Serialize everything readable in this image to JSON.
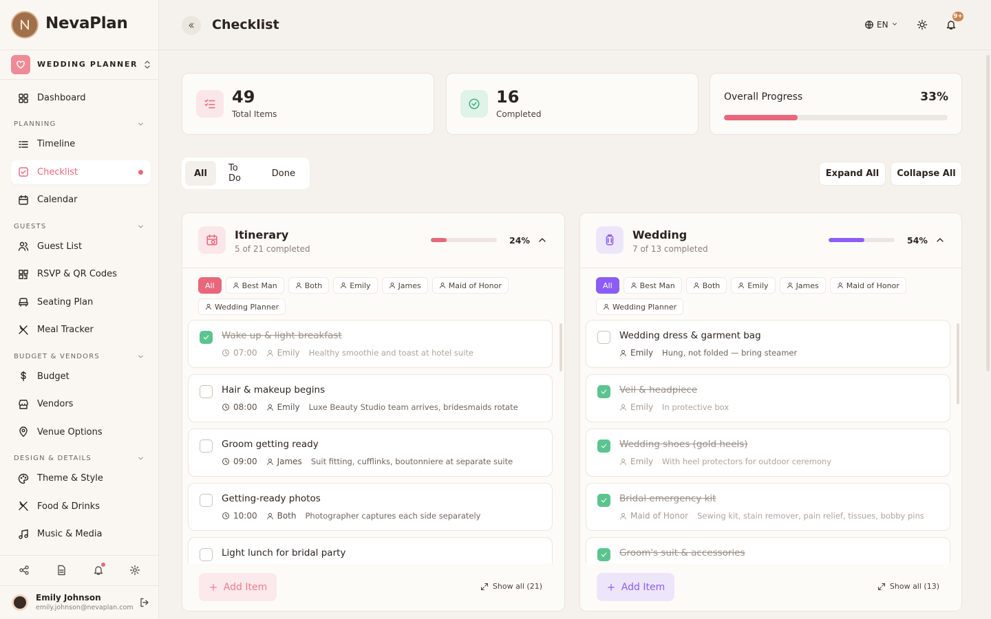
{
  "sidebar": {
    "brand": "NevaPlan",
    "workspace": "WEDDING PLANNER",
    "top": [
      "Dashboard"
    ],
    "sections": [
      {
        "title": "PLANNING",
        "items": [
          "Timeline",
          "Checklist",
          "Calendar"
        ]
      },
      {
        "title": "GUESTS",
        "items": [
          "Guest List",
          "RSVP & QR Codes",
          "Seating Plan",
          "Meal Tracker"
        ]
      },
      {
        "title": "BUDGET & VENDORS",
        "items": [
          "Budget",
          "Vendors",
          "Venue Options"
        ]
      },
      {
        "title": "DESIGN & DETAILS",
        "items": [
          "Theme & Style",
          "Food & Drinks",
          "Music & Media"
        ]
      }
    ],
    "active": [
      0,
      1
    ],
    "user": {
      "name": "Emily Johnson",
      "email": "emily.johnson@nevaplan.com"
    }
  },
  "header": {
    "title": "Checklist",
    "language": "EN",
    "notifications": "9+"
  },
  "stats": {
    "total": {
      "value": 49,
      "label": "Total Items"
    },
    "completed": {
      "value": 16,
      "label": "Completed"
    },
    "progress": {
      "label": "Overall Progress",
      "value": 33,
      "value_label": "33%"
    }
  },
  "filters": [
    "All",
    "To Do",
    "Done"
  ],
  "actions": [
    "Expand All",
    "Collapse All"
  ],
  "panels": [
    {
      "title": "Itinerary",
      "subtitle": "5 of 21 completed",
      "progress": 24,
      "progress_label": "24%",
      "color": "#e8677a",
      "tint": "#fbe7e9",
      "chips": [
        "All",
        "Best Man",
        "Both",
        "Emily",
        "James",
        "Maid of Honor",
        "Wedding Planner"
      ],
      "items": [
        {
          "title": "Wake up & light breakfast",
          "done": true,
          "time": "07:00",
          "person": "Emily",
          "note": "Healthy smoothie and toast at hotel suite"
        },
        {
          "title": "Hair & makeup begins",
          "done": false,
          "time": "08:00",
          "person": "Emily",
          "note": "Luxe Beauty Studio team arrives, bridesmaids rotate"
        },
        {
          "title": "Groom getting ready",
          "done": false,
          "time": "09:00",
          "person": "James",
          "note": "Suit fitting, cufflinks, boutonniere at separate suite"
        },
        {
          "title": "Getting-ready photos",
          "done": false,
          "time": "10:00",
          "person": "Both",
          "note": "Photographer captures each side separately"
        },
        {
          "title": "Light lunch for bridal party",
          "done": false
        }
      ],
      "add": "Add Item",
      "show_all": "Show all (21)"
    },
    {
      "title": "Wedding",
      "subtitle": "7 of 13 completed",
      "progress": 54,
      "progress_label": "54%",
      "color": "#8b5cf6",
      "tint": "#ede6fb",
      "chips": [
        "All",
        "Best Man",
        "Both",
        "Emily",
        "James",
        "Maid of Honor",
        "Wedding Planner"
      ],
      "items": [
        {
          "title": "Wedding dress & garment bag",
          "done": false,
          "person": "Emily",
          "note": "Hung, not folded — bring steamer"
        },
        {
          "title": "Veil & headpiece",
          "done": true,
          "person": "Emily",
          "note": "In protective box"
        },
        {
          "title": "Wedding shoes (gold heels)",
          "done": true,
          "person": "Emily",
          "note": "With heel protectors for outdoor ceremony"
        },
        {
          "title": "Bridal emergency kit",
          "done": true,
          "person": "Maid of Honor",
          "note": "Sewing kit, stain remover, pain relief, tissues, bobby pins"
        },
        {
          "title": "Groom's suit & accessories",
          "done": true
        }
      ],
      "add": "Add Item",
      "show_all": "Show all (13)"
    }
  ]
}
